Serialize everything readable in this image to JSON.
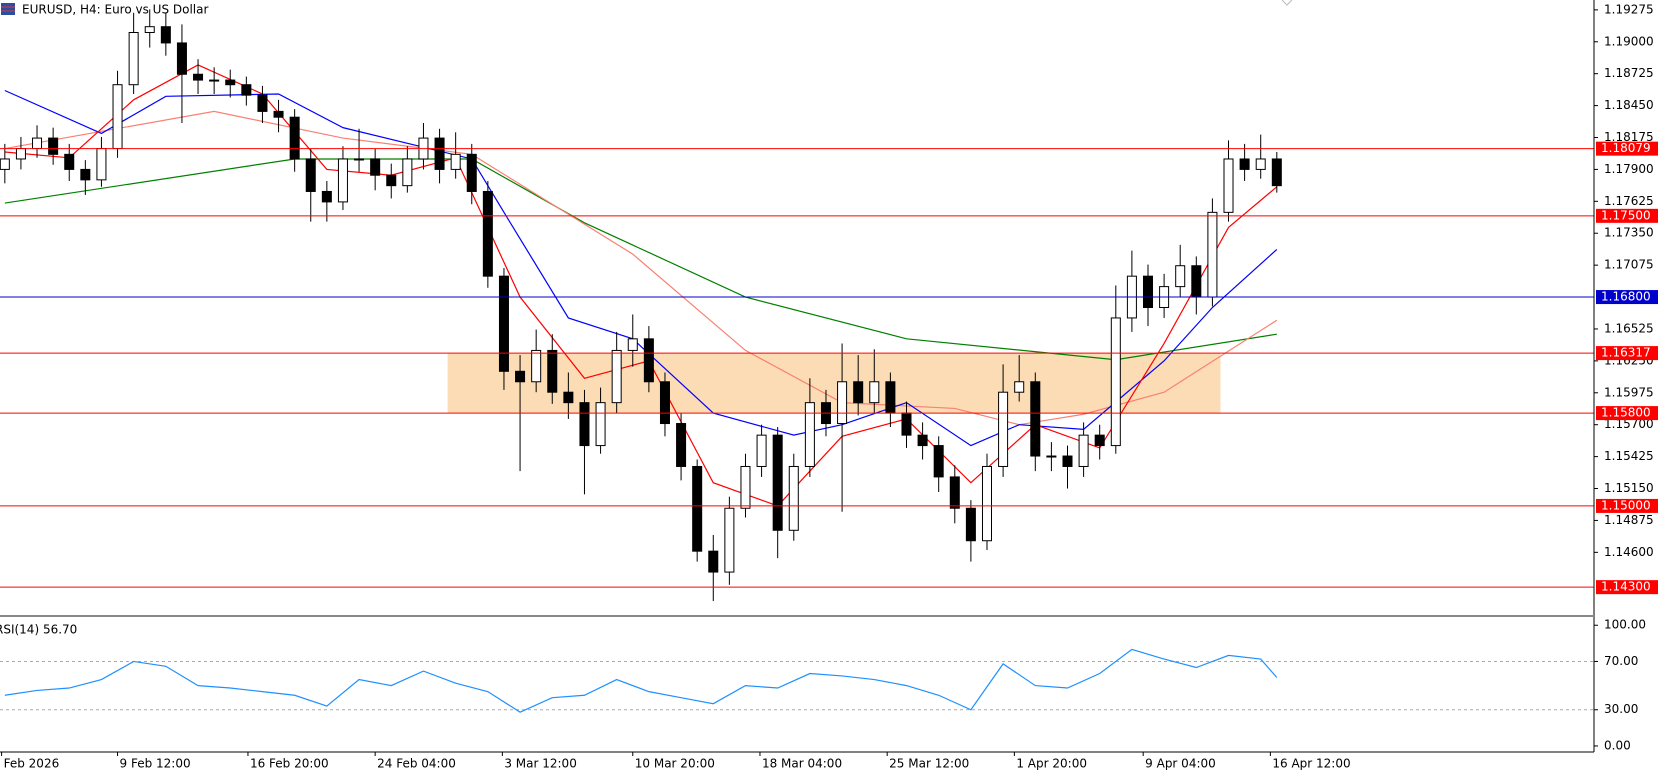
{
  "chart_data": [
    {
      "type": "candlestick",
      "title": "EURUSD, H4:  Euro vs US Dollar",
      "xlim": [
        -0.3,
        98.7
      ],
      "ylim": [
        1.1406,
        1.1936
      ],
      "yticks": [
        1.19275,
        {
          "value": 1.19,
          "label": "1.19000"
        },
        1.18725,
        {
          "value": 1.1845,
          "label": "1.18450"
        },
        1.18175,
        {
          "value": 1.179,
          "label": "1.17900"
        },
        1.17625,
        {
          "value": 1.1735,
          "label": "1.17350"
        },
        1.17075,
        1.16525,
        {
          "value": 1.1625,
          "label": "1.16250"
        },
        1.15975,
        {
          "value": 1.157,
          "label": "1.15700"
        },
        1.15425,
        {
          "value": 1.1515,
          "label": "1.15150"
        },
        1.14875,
        {
          "value": 1.146,
          "label": "1.14600"
        }
      ],
      "up_color": "#ffffff",
      "down_color": "#000000",
      "x": [
        0,
        1,
        2,
        3,
        4,
        5,
        6,
        7,
        8,
        9,
        10,
        11,
        12,
        13,
        14,
        15,
        16,
        17,
        18,
        19,
        20,
        21,
        22,
        23,
        24,
        25,
        26,
        27,
        28,
        29,
        30,
        31,
        32,
        33,
        34,
        35,
        36,
        37,
        38,
        39,
        40,
        41,
        42,
        43,
        44,
        45,
        46,
        47,
        48,
        49,
        50,
        51,
        52,
        53,
        54,
        55,
        56,
        57,
        58,
        59,
        60,
        61,
        62,
        63,
        64,
        65,
        66,
        67,
        68,
        69,
        70,
        71,
        72,
        73,
        74,
        75,
        76,
        77,
        78,
        79
      ],
      "open": [
        1.179,
        1.1799,
        1.1808,
        1.1817,
        1.1803,
        1.179,
        1.1781,
        1.1808,
        1.1863,
        1.1908,
        1.1913,
        1.1899,
        1.1872,
        1.1867,
        1.1867,
        1.1863,
        1.1854,
        1.184,
        1.1835,
        1.1799,
        1.1771,
        1.1762,
        1.1799,
        1.1799,
        1.1785,
        1.1776,
        1.1799,
        1.1817,
        1.179,
        1.1803,
        1.1771,
        1.1698,
        1.1616,
        1.1607,
        1.1634,
        1.1598,
        1.1589,
        1.1552,
        1.1589,
        1.1634,
        1.1644,
        1.1607,
        1.1571,
        1.1534,
        1.1461,
        1.1443,
        1.1498,
        1.1534,
        1.1561,
        1.1479,
        1.1534,
        1.1589,
        1.1571,
        1.1607,
        1.1589,
        1.1607,
        1.158,
        1.1561,
        1.1552,
        1.1525,
        1.1498,
        1.147,
        1.1534,
        1.1598,
        1.1607,
        1.1543,
        1.1543,
        1.1534,
        1.1561,
        1.1552,
        1.1662,
        1.1698,
        1.1671,
        1.1689,
        1.1707,
        1.168,
        1.1753,
        1.1799,
        1.179,
        1.1799
      ],
      "high": [
        1.1812,
        1.1818,
        1.1828,
        1.1826,
        1.1812,
        1.1798,
        1.1818,
        1.1875,
        1.1925,
        1.1928,
        1.1925,
        1.1915,
        1.1885,
        1.1878,
        1.1876,
        1.187,
        1.1862,
        1.185,
        1.1842,
        1.1808,
        1.178,
        1.181,
        1.1825,
        1.1808,
        1.1795,
        1.181,
        1.183,
        1.1825,
        1.1822,
        1.1812,
        1.178,
        1.1705,
        1.163,
        1.1652,
        1.1648,
        1.1615,
        1.16,
        1.1602,
        1.165,
        1.1665,
        1.1655,
        1.1615,
        1.158,
        1.154,
        1.1475,
        1.1508,
        1.1545,
        1.157,
        1.1568,
        1.1545,
        1.161,
        1.16,
        1.164,
        1.163,
        1.1635,
        1.1615,
        1.159,
        1.1572,
        1.156,
        1.1535,
        1.1505,
        1.1545,
        1.1622,
        1.163,
        1.1615,
        1.1555,
        1.1552,
        1.1572,
        1.157,
        1.169,
        1.172,
        1.1708,
        1.17,
        1.1725,
        1.1715,
        1.1765,
        1.1815,
        1.1812,
        1.182,
        1.1805
      ],
      "low": [
        1.1778,
        1.179,
        1.18,
        1.1794,
        1.178,
        1.1768,
        1.1775,
        1.18,
        1.1855,
        1.1895,
        1.1888,
        1.183,
        1.1855,
        1.1855,
        1.1852,
        1.1845,
        1.183,
        1.1822,
        1.1788,
        1.1745,
        1.1745,
        1.1755,
        1.1788,
        1.1772,
        1.1765,
        1.177,
        1.179,
        1.1778,
        1.1782,
        1.176,
        1.1688,
        1.16,
        1.153,
        1.1598,
        1.1588,
        1.1575,
        1.151,
        1.1545,
        1.158,
        1.162,
        1.1598,
        1.156,
        1.1522,
        1.1452,
        1.1418,
        1.1432,
        1.149,
        1.1525,
        1.1455,
        1.147,
        1.1525,
        1.156,
        1.1495,
        1.1578,
        1.158,
        1.1568,
        1.155,
        1.154,
        1.1512,
        1.1485,
        1.1452,
        1.1462,
        1.1525,
        1.159,
        1.153,
        1.153,
        1.1515,
        1.1525,
        1.154,
        1.1545,
        1.165,
        1.1655,
        1.1662,
        1.168,
        1.1665,
        1.1672,
        1.1745,
        1.178,
        1.1782,
        1.177
      ],
      "close": [
        1.1799,
        1.1808,
        1.1817,
        1.1803,
        1.179,
        1.1781,
        1.1808,
        1.1863,
        1.1908,
        1.1913,
        1.1899,
        1.1872,
        1.1867,
        1.1867,
        1.1863,
        1.1854,
        1.184,
        1.1835,
        1.1799,
        1.1771,
        1.1762,
        1.1799,
        1.1799,
        1.1785,
        1.1776,
        1.1799,
        1.1817,
        1.179,
        1.1803,
        1.1771,
        1.1698,
        1.1616,
        1.1607,
        1.1634,
        1.1598,
        1.1589,
        1.1552,
        1.1589,
        1.1634,
        1.1644,
        1.1607,
        1.1571,
        1.1534,
        1.1461,
        1.1443,
        1.1498,
        1.1534,
        1.1561,
        1.1479,
        1.1534,
        1.1589,
        1.1571,
        1.1607,
        1.1589,
        1.1607,
        1.158,
        1.1561,
        1.1552,
        1.1525,
        1.1498,
        1.147,
        1.1534,
        1.1598,
        1.1607,
        1.1543,
        1.1543,
        1.1534,
        1.1561,
        1.1552,
        1.1662,
        1.1698,
        1.1671,
        1.1689,
        1.1707,
        1.168,
        1.1753,
        1.1799,
        1.179,
        1.1799,
        1.1776
      ],
      "series": [
        {
          "color": "#008000",
          "x": [
            0,
            18,
            29,
            36,
            46,
            56,
            69,
            79
          ],
          "values": [
            1.1761,
            1.1799,
            1.1799,
            1.1744,
            1.168,
            1.1644,
            1.1626,
            1.1648
          ]
        },
        {
          "color": "#fa8072",
          "x": [
            0,
            13,
            21,
            29,
            39,
            46,
            52,
            59,
            63,
            67,
            72,
            79
          ],
          "values": [
            1.1808,
            1.184,
            1.1817,
            1.1803,
            1.1717,
            1.1634,
            1.1589,
            1.1584,
            1.157,
            1.1579,
            1.1598,
            1.166
          ]
        },
        {
          "color": "#0000ff",
          "x": [
            0,
            6,
            10,
            17,
            21,
            29,
            31,
            35,
            39,
            44,
            49,
            52,
            56,
            60,
            63,
            67,
            72,
            75,
            79
          ],
          "values": [
            1.1858,
            1.1821,
            1.1853,
            1.1855,
            1.1826,
            1.1799,
            1.1753,
            1.1662,
            1.1644,
            1.158,
            1.1561,
            1.157,
            1.1589,
            1.1552,
            1.157,
            1.1566,
            1.1625,
            1.1671,
            1.1721
          ]
        },
        {
          "color": "#ff0000",
          "x": [
            0,
            4,
            8,
            12,
            16,
            20,
            24,
            28,
            32,
            36,
            40,
            44,
            48,
            52,
            56,
            60,
            64,
            68,
            72,
            76,
            79
          ],
          "values": [
            1.1805,
            1.18,
            1.185,
            1.188,
            1.1855,
            1.179,
            1.1785,
            1.18,
            1.168,
            1.161,
            1.1625,
            1.152,
            1.15,
            1.156,
            1.1575,
            1.152,
            1.157,
            1.155,
            1.164,
            1.174,
            1.1775
          ]
        }
      ],
      "zone": {
        "x": [
          27.5,
          75.5
        ],
        "y": [
          1.158,
          1.16317
        ],
        "color": "#fcdcb4"
      },
      "levels": [
        {
          "value": 1.18079,
          "label": "1.18079",
          "color": "#ff0000"
        },
        {
          "value": 1.175,
          "label": "1.17500",
          "color": "#ff0000"
        },
        {
          "value": 1.168,
          "label": "1.16800",
          "color": "#0000cd"
        },
        {
          "value": 1.16317,
          "label": "1.16317",
          "color": "#ff0000"
        },
        {
          "value": 1.158,
          "label": "1.15800",
          "color": "#ff0000"
        },
        {
          "value": 1.15,
          "label": "1.15000",
          "color": "#ff0000"
        },
        {
          "value": 1.143,
          "label": "1.14300",
          "color": "#ff0000"
        }
      ]
    },
    {
      "type": "line",
      "title": "RSI(14) 56.70",
      "xlim": [
        -0.3,
        98.7
      ],
      "ylim": [
        -5,
        106
      ],
      "yticks": [
        {
          "value": 100,
          "label": "100.00"
        },
        {
          "value": 70,
          "label": "70.00"
        },
        {
          "value": 30,
          "label": "30.00"
        },
        {
          "value": 0,
          "label": "0.00"
        }
      ],
      "hlines": [
        70,
        30
      ],
      "xticks": [
        {
          "value": -0.2,
          "label": "Feb 2026"
        },
        {
          "value": 7.0,
          "label": "9 Feb 12:00"
        },
        {
          "value": 15.1,
          "label": "16 Feb 20:00"
        },
        {
          "value": 23.0,
          "label": "24 Feb 04:00"
        },
        {
          "value": 30.9,
          "label": "3 Mar 12:00"
        },
        {
          "value": 39.0,
          "label": "10 Mar 20:00"
        },
        {
          "value": 46.9,
          "label": "18 Mar 04:00"
        },
        {
          "value": 54.8,
          "label": "25 Mar 12:00"
        },
        {
          "value": 62.7,
          "label": "1 Apr 20:00"
        },
        {
          "value": 70.7,
          "label": "9 Apr 04:00"
        },
        {
          "value": 78.6,
          "label": "16 Apr 12:00"
        }
      ],
      "series": [
        {
          "color": "#1e90ff",
          "x": [
            0,
            2,
            4,
            6,
            8,
            10,
            12,
            14,
            16,
            18,
            20,
            22,
            24,
            26,
            28,
            30,
            32,
            34,
            36,
            38,
            40,
            42,
            44,
            46,
            48,
            50,
            52,
            54,
            56,
            58,
            60,
            62,
            64,
            66,
            68,
            70,
            72,
            74,
            76,
            78,
            79
          ],
          "values": [
            42,
            46,
            48,
            55,
            70,
            66,
            50,
            48,
            45,
            42,
            33,
            55,
            50,
            62,
            52,
            45,
            28,
            40,
            42,
            55,
            45,
            40,
            35,
            50,
            48,
            60,
            58,
            55,
            50,
            42,
            30,
            68,
            50,
            48,
            60,
            80,
            72,
            65,
            75,
            72,
            56.7
          ]
        }
      ]
    }
  ]
}
